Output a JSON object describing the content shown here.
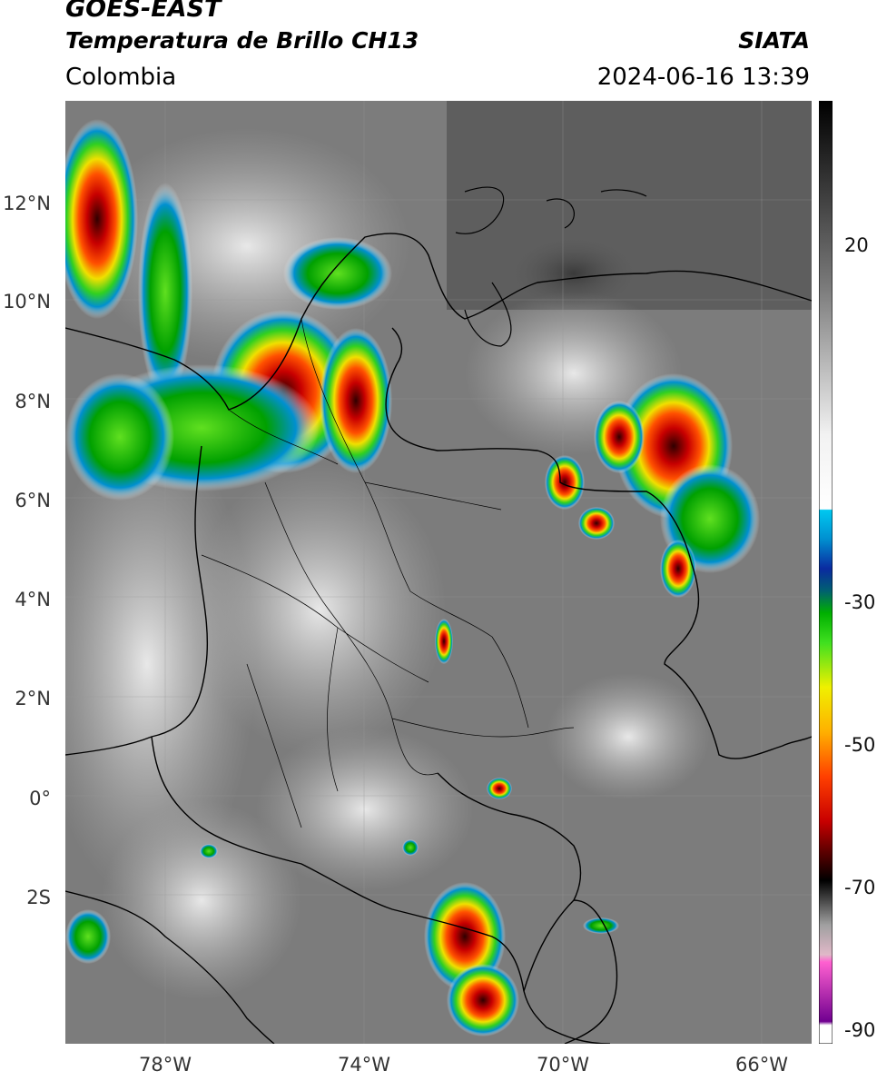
{
  "header": {
    "satellite": "GOES-EAST",
    "product": "Temperatura de Brillo CH13",
    "region": "Colombia",
    "agency": "SIATA",
    "datetime": "2024-06-16 13:39"
  },
  "map": {
    "lon_range": [
      -80,
      -65
    ],
    "lat_range": [
      -5,
      14
    ],
    "lat_ticks": [
      {
        "value": 12,
        "label": "12°N"
      },
      {
        "value": 10,
        "label": "10°N"
      },
      {
        "value": 8,
        "label": "8°N"
      },
      {
        "value": 6,
        "label": "6°N"
      },
      {
        "value": 4,
        "label": "4°N"
      },
      {
        "value": 2,
        "label": "2°N"
      },
      {
        "value": 0,
        "label": "0°"
      },
      {
        "value": -2,
        "label": "2S"
      }
    ],
    "lon_ticks": [
      {
        "value": -78,
        "label": "78°W"
      },
      {
        "value": -74,
        "label": "74°W"
      },
      {
        "value": -70,
        "label": "70°W"
      },
      {
        "value": -66,
        "label": "66°W"
      }
    ]
  },
  "colorbar": {
    "range": [
      -92,
      35
    ],
    "ticks": [
      {
        "value": 20,
        "label": "20"
      },
      {
        "value": -30,
        "label": "-30"
      },
      {
        "value": -50,
        "label": "-50"
      },
      {
        "value": -70,
        "label": "-70"
      },
      {
        "value": -90,
        "label": "-90"
      }
    ],
    "stops": [
      {
        "t": 35,
        "c": "#000000"
      },
      {
        "t": 10,
        "c": "#7a7a7a"
      },
      {
        "t": -10,
        "c": "#f2f2f2"
      },
      {
        "t": -20,
        "c": "#ffffff"
      },
      {
        "t": -20.1,
        "c": "#00c8f0"
      },
      {
        "t": -24,
        "c": "#0090d0"
      },
      {
        "t": -28,
        "c": "#0a2aa0"
      },
      {
        "t": -31,
        "c": "#006070"
      },
      {
        "t": -34,
        "c": "#00b000"
      },
      {
        "t": -38,
        "c": "#40e020"
      },
      {
        "t": -44,
        "c": "#f0f000"
      },
      {
        "t": -50,
        "c": "#ffb000"
      },
      {
        "t": -56,
        "c": "#ff4000"
      },
      {
        "t": -62,
        "c": "#c80000"
      },
      {
        "t": -66,
        "c": "#600000"
      },
      {
        "t": -70,
        "c": "#000000"
      },
      {
        "t": -76,
        "c": "#a0a0a0"
      },
      {
        "t": -80,
        "c": "#e0b8c8"
      },
      {
        "t": -81,
        "c": "#ff60d0"
      },
      {
        "t": -89,
        "c": "#700090"
      },
      {
        "t": -89.5,
        "c": "#ffffff"
      },
      {
        "t": -92,
        "c": "#ffffff"
      }
    ]
  }
}
